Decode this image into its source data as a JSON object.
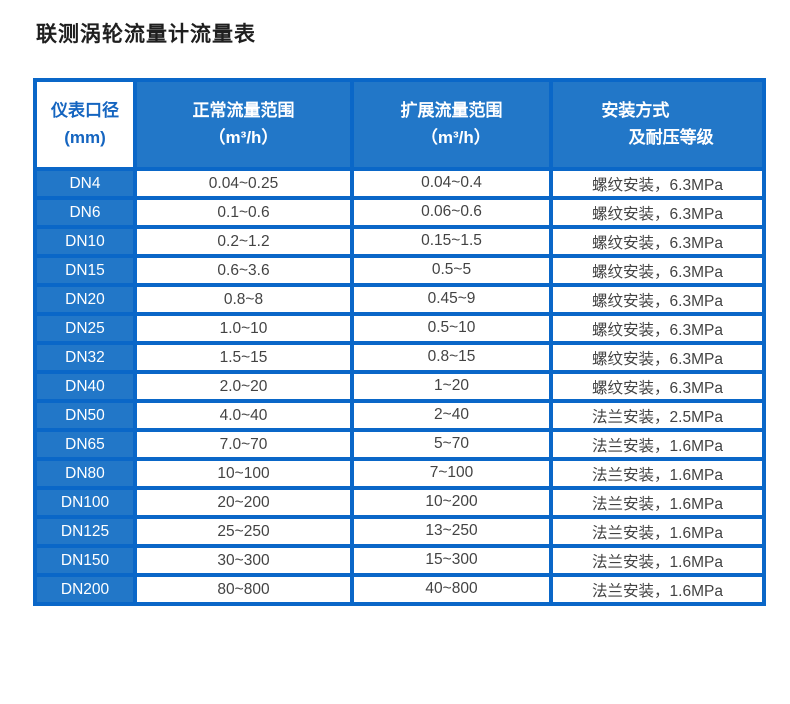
{
  "page": {
    "title": "联测涡轮流量计流量表"
  },
  "colors": {
    "table_border": "#0a67c8",
    "header_fill": "#2277c8",
    "header_corner_text": "#1565c0",
    "data_text": "#434343",
    "title_text": "#1f1f1f"
  },
  "table": {
    "header": {
      "col1": {
        "line1": "仪表口径",
        "line2": "(mm)"
      },
      "col2": {
        "line1": "正常流量范围",
        "line2": "（m³/h）"
      },
      "col3": {
        "line1": "扩展流量范围",
        "line2": "（m³/h）"
      },
      "col4": {
        "line1": "安装方式",
        "line2": "及耐压等级"
      }
    },
    "rows": [
      {
        "dn": "DN4",
        "normal": "0.04~0.25",
        "extended": "0.04~0.4",
        "install": "螺纹安装，6.3MPa"
      },
      {
        "dn": "DN6",
        "normal": "0.1~0.6",
        "extended": "0.06~0.6",
        "install": "螺纹安装，6.3MPa"
      },
      {
        "dn": "DN10",
        "normal": "0.2~1.2",
        "extended": "0.15~1.5",
        "install": "螺纹安装，6.3MPa"
      },
      {
        "dn": "DN15",
        "normal": "0.6~3.6",
        "extended": "0.5~5",
        "install": "螺纹安装，6.3MPa"
      },
      {
        "dn": "DN20",
        "normal": "0.8~8",
        "extended": "0.45~9",
        "install": "螺纹安装，6.3MPa"
      },
      {
        "dn": "DN25",
        "normal": "1.0~10",
        "extended": "0.5~10",
        "install": "螺纹安装，6.3MPa"
      },
      {
        "dn": "DN32",
        "normal": "1.5~15",
        "extended": "0.8~15",
        "install": "螺纹安装，6.3MPa"
      },
      {
        "dn": "DN40",
        "normal": "2.0~20",
        "extended": "1~20",
        "install": "螺纹安装，6.3MPa"
      },
      {
        "dn": "DN50",
        "normal": "4.0~40",
        "extended": "2~40",
        "install": "法兰安装，2.5MPa"
      },
      {
        "dn": "DN65",
        "normal": "7.0~70",
        "extended": "5~70",
        "install": "法兰安装，1.6MPa"
      },
      {
        "dn": "DN80",
        "normal": "10~100",
        "extended": "7~100",
        "install": "法兰安装，1.6MPa"
      },
      {
        "dn": "DN100",
        "normal": "20~200",
        "extended": "10~200",
        "install": "法兰安装，1.6MPa"
      },
      {
        "dn": "DN125",
        "normal": "25~250",
        "extended": "13~250",
        "install": "法兰安装，1.6MPa"
      },
      {
        "dn": "DN150",
        "normal": "30~300",
        "extended": "15~300",
        "install": "法兰安装，1.6MPa"
      },
      {
        "dn": "DN200",
        "normal": "80~800",
        "extended": "40~800",
        "install": "法兰安装，1.6MPa"
      }
    ]
  }
}
